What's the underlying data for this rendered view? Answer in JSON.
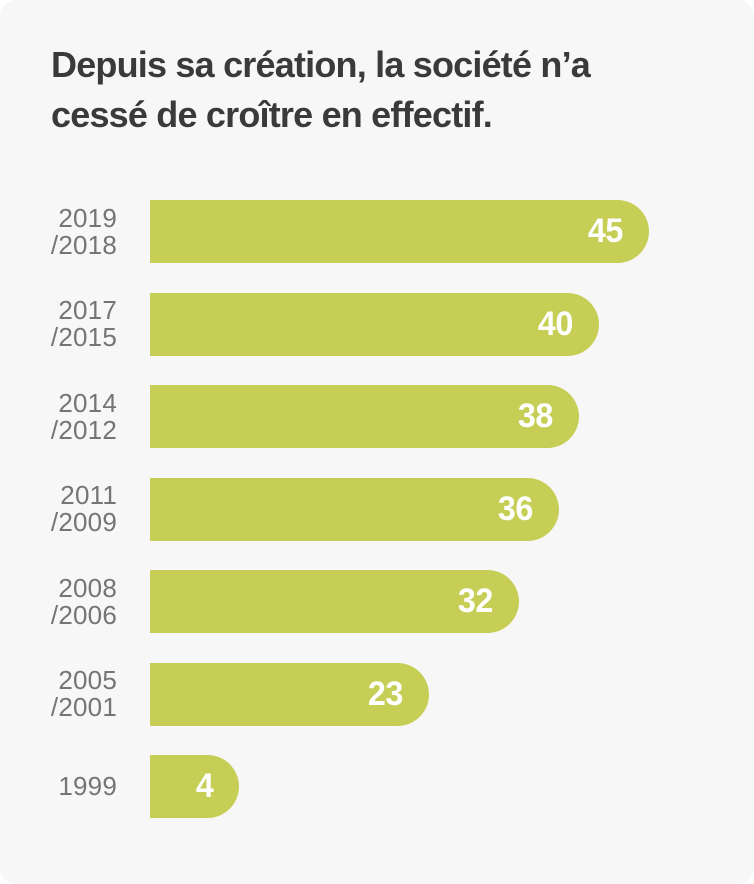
{
  "title": "Depuis sa création, la société n’a cessé de croître en effectif.",
  "chart_data": {
    "type": "bar",
    "orientation": "horizontal",
    "title": "Depuis sa création, la société n’a cessé de croître en effectif.",
    "categories": [
      "2019 /2018",
      "2017 /2015",
      "2014 /2012",
      "2011 /2009",
      "2008 /2006",
      "2005 /2001",
      "1999"
    ],
    "category_lines": [
      [
        "2019",
        "/2018"
      ],
      [
        "2017",
        "/2015"
      ],
      [
        "2014",
        "/2012"
      ],
      [
        "2011",
        "/2009"
      ],
      [
        "2008",
        "/2006"
      ],
      [
        "2005",
        "/2001"
      ],
      [
        "1999"
      ]
    ],
    "values": [
      45,
      40,
      38,
      36,
      32,
      23,
      4
    ],
    "value_labels": [
      "45",
      "40",
      "38",
      "36",
      "32",
      "23",
      "4"
    ],
    "xlabel": "",
    "ylabel": "",
    "xlim": [
      0,
      50
    ],
    "grid": false,
    "legend": false,
    "value_label_position": "inside-end"
  },
  "colors": {
    "bar": "#c6ce55",
    "card_background": "#f7f7f7",
    "page_background": "#ffffff",
    "title_text": "#3a3a3a",
    "category_label_text": "#757575",
    "value_text": "#ffffff"
  }
}
